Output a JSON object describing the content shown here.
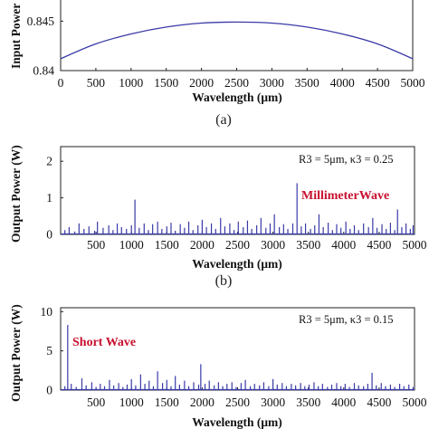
{
  "chart_data": [
    {
      "type": "line",
      "panel_label": "(a)",
      "xlabel": "Wavelength (μm)",
      "ylabel": "Input Power (",
      "xlim": [
        0,
        5000
      ],
      "ylim": [
        0.84,
        0.8475
      ],
      "x_ticks": [
        "0",
        "500",
        "1000",
        "1500",
        "2000",
        "2500",
        "3000",
        "3500",
        "4000",
        "4500",
        "5000"
      ],
      "y_ticks": [
        {
          "value": 0.84,
          "label": "0.84"
        },
        {
          "value": 0.845,
          "label": "0.845"
        }
      ],
      "series": [
        {
          "color": "#3a3aa8",
          "x": [
            0,
            500,
            1000,
            1500,
            2000,
            2500,
            3000,
            3500,
            4000,
            4500,
            5000
          ],
          "y": [
            0.8412,
            0.8427,
            0.8437,
            0.8444,
            0.8448,
            0.8449,
            0.8448,
            0.8444,
            0.8437,
            0.8427,
            0.8412
          ]
        }
      ]
    },
    {
      "type": "bar",
      "panel_label": "(b)",
      "xlabel": "Wavelength (μm)",
      "ylabel": "Output Power (W)",
      "xlim": [
        0,
        5000
      ],
      "ylim": [
        0,
        2.4
      ],
      "x_ticks": [
        "500",
        "1000",
        "1500",
        "2000",
        "2500",
        "3000",
        "3500",
        "4000",
        "4500",
        "5000"
      ],
      "y_ticks": [
        {
          "value": 0,
          "label": "0"
        },
        {
          "value": 1,
          "label": "1"
        },
        {
          "value": 2,
          "label": "2"
        }
      ],
      "annotation": "R3 = 5μm,  κ3 = 0.25",
      "tag": "MillimeterWave",
      "color": "#3a3aa8",
      "peaks": [
        [
          60,
          0.12
        ],
        [
          120,
          0.2
        ],
        [
          200,
          0.08
        ],
        [
          260,
          0.3
        ],
        [
          330,
          0.15
        ],
        [
          400,
          0.22
        ],
        [
          480,
          0.1
        ],
        [
          520,
          0.35
        ],
        [
          600,
          0.18
        ],
        [
          680,
          0.25
        ],
        [
          740,
          0.12
        ],
        [
          800,
          0.3
        ],
        [
          860,
          0.2
        ],
        [
          930,
          0.15
        ],
        [
          1000,
          0.25
        ],
        [
          1050,
          0.95
        ],
        [
          1110,
          0.18
        ],
        [
          1180,
          0.3
        ],
        [
          1240,
          0.12
        ],
        [
          1300,
          0.28
        ],
        [
          1370,
          0.35
        ],
        [
          1430,
          0.15
        ],
        [
          1500,
          0.22
        ],
        [
          1560,
          0.32
        ],
        [
          1620,
          0.1
        ],
        [
          1690,
          0.28
        ],
        [
          1750,
          0.18
        ],
        [
          1810,
          0.35
        ],
        [
          1870,
          0.12
        ],
        [
          1940,
          0.25
        ],
        [
          2000,
          0.4
        ],
        [
          2060,
          0.2
        ],
        [
          2130,
          0.3
        ],
        [
          2190,
          0.15
        ],
        [
          2260,
          0.45
        ],
        [
          2320,
          0.22
        ],
        [
          2390,
          0.3
        ],
        [
          2450,
          0.12
        ],
        [
          2510,
          0.35
        ],
        [
          2580,
          0.2
        ],
        [
          2640,
          0.38
        ],
        [
          2700,
          0.15
        ],
        [
          2770,
          0.25
        ],
        [
          2830,
          0.45
        ],
        [
          2900,
          0.18
        ],
        [
          2960,
          0.3
        ],
        [
          3020,
          0.55
        ],
        [
          3090,
          0.2
        ],
        [
          3150,
          0.28
        ],
        [
          3210,
          0.15
        ],
        [
          3280,
          0.3
        ],
        [
          3340,
          1.4
        ],
        [
          3400,
          0.22
        ],
        [
          3460,
          0.3
        ],
        [
          3530,
          0.15
        ],
        [
          3590,
          0.25
        ],
        [
          3650,
          0.55
        ],
        [
          3710,
          0.2
        ],
        [
          3780,
          0.32
        ],
        [
          3840,
          0.12
        ],
        [
          3900,
          0.28
        ],
        [
          3960,
          0.18
        ],
        [
          4030,
          0.35
        ],
        [
          4090,
          0.15
        ],
        [
          4150,
          0.25
        ],
        [
          4210,
          0.12
        ],
        [
          4280,
          0.3
        ],
        [
          4350,
          0.2
        ],
        [
          4410,
          0.45
        ],
        [
          4470,
          0.18
        ],
        [
          4540,
          0.28
        ],
        [
          4600,
          0.15
        ],
        [
          4660,
          0.32
        ],
        [
          4720,
          0.12
        ],
        [
          4760,
          0.68
        ],
        [
          4820,
          0.2
        ],
        [
          4880,
          0.3
        ],
        [
          4940,
          0.15
        ],
        [
          4980,
          0.25
        ]
      ]
    },
    {
      "type": "bar",
      "panel_label": "",
      "xlabel": "Wavelength (μm)",
      "ylabel": "Output Power (W)",
      "xlim": [
        0,
        5000
      ],
      "ylim": [
        0,
        10.5
      ],
      "x_ticks": [
        "500",
        "1000",
        "1500",
        "2000",
        "2500",
        "3000",
        "3500",
        "4000",
        "4500",
        "5000"
      ],
      "y_ticks": [
        {
          "value": 0,
          "label": "0"
        },
        {
          "value": 5,
          "label": "5"
        },
        {
          "value": 10,
          "label": "10"
        }
      ],
      "annotation": "R3 = 5μm,  κ3 = 0.15",
      "tag": "Short Wave",
      "color": "#3a3aa8",
      "peaks": [
        [
          60,
          0.5
        ],
        [
          100,
          8.3
        ],
        [
          150,
          0.8
        ],
        [
          220,
          0.4
        ],
        [
          300,
          1.5
        ],
        [
          360,
          0.6
        ],
        [
          440,
          1.0
        ],
        [
          500,
          0.4
        ],
        [
          560,
          0.8
        ],
        [
          620,
          0.5
        ],
        [
          690,
          1.3
        ],
        [
          750,
          0.6
        ],
        [
          820,
          0.9
        ],
        [
          880,
          0.4
        ],
        [
          940,
          0.7
        ],
        [
          1000,
          1.4
        ],
        [
          1060,
          0.6
        ],
        [
          1130,
          2.0
        ],
        [
          1190,
          0.8
        ],
        [
          1250,
          1.2
        ],
        [
          1310,
          0.5
        ],
        [
          1370,
          2.4
        ],
        [
          1440,
          0.9
        ],
        [
          1500,
          1.3
        ],
        [
          1560,
          0.5
        ],
        [
          1620,
          1.8
        ],
        [
          1680,
          0.7
        ],
        [
          1750,
          1.2
        ],
        [
          1810,
          0.5
        ],
        [
          1880,
          1.0
        ],
        [
          1950,
          0.7
        ],
        [
          1980,
          3.3
        ],
        [
          2040,
          0.8
        ],
        [
          2100,
          1.2
        ],
        [
          2170,
          0.6
        ],
        [
          2230,
          1.0
        ],
        [
          2290,
          0.5
        ],
        [
          2350,
          0.8
        ],
        [
          2420,
          1.0
        ],
        [
          2480,
          0.4
        ],
        [
          2550,
          0.9
        ],
        [
          2610,
          1.3
        ],
        [
          2680,
          0.5
        ],
        [
          2740,
          0.8
        ],
        [
          2810,
          0.6
        ],
        [
          2870,
          1.0
        ],
        [
          2940,
          0.5
        ],
        [
          3000,
          1.4
        ],
        [
          3060,
          0.7
        ],
        [
          3130,
          0.9
        ],
        [
          3190,
          0.5
        ],
        [
          3260,
          0.8
        ],
        [
          3320,
          0.6
        ],
        [
          3390,
          0.9
        ],
        [
          3450,
          0.5
        ],
        [
          3510,
          0.7
        ],
        [
          3580,
          1.0
        ],
        [
          3640,
          0.5
        ],
        [
          3700,
          0.8
        ],
        [
          3770,
          0.4
        ],
        [
          3830,
          0.7
        ],
        [
          3900,
          0.9
        ],
        [
          3960,
          0.5
        ],
        [
          4020,
          0.8
        ],
        [
          4080,
          0.4
        ],
        [
          4150,
          0.9
        ],
        [
          4210,
          0.6
        ],
        [
          4280,
          0.5
        ],
        [
          4340,
          0.8
        ],
        [
          4400,
          2.2
        ],
        [
          4460,
          0.6
        ],
        [
          4530,
          0.9
        ],
        [
          4590,
          0.5
        ],
        [
          4660,
          0.7
        ],
        [
          4720,
          0.4
        ],
        [
          4790,
          0.8
        ],
        [
          4850,
          0.5
        ],
        [
          4920,
          0.7
        ],
        [
          4980,
          0.4
        ]
      ]
    }
  ]
}
